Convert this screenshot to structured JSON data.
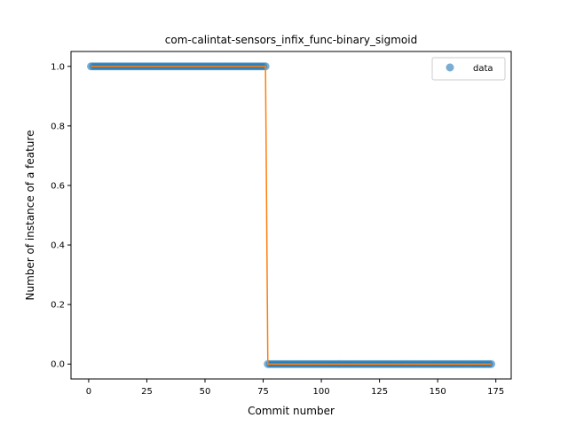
{
  "chart_data": {
    "type": "scatter",
    "title": "com-calintat-sensors_infix_func-binary_sigmoid",
    "xlabel": "Commit number",
    "ylabel": "Number of instance of a feature",
    "xlim": [
      -7.6,
      181.6
    ],
    "ylim": [
      -0.05,
      1.05
    ],
    "xticks": [
      0,
      25,
      50,
      75,
      100,
      125,
      150,
      175
    ],
    "yticks": [
      0.0,
      0.2,
      0.4,
      0.6,
      0.8,
      1.0
    ],
    "xtick_labels": [
      "0",
      "25",
      "50",
      "75",
      "100",
      "125",
      "150",
      "175"
    ],
    "ytick_labels": [
      "0.0",
      "0.2",
      "0.4",
      "0.6",
      "0.8",
      "1.0"
    ],
    "grid": false,
    "legend_position": "top-right",
    "series": [
      {
        "name": "data",
        "kind": "scatter",
        "color": "#1f77b4",
        "segments": [
          {
            "x_start": 1,
            "x_end": 76,
            "y": 1
          },
          {
            "x_start": 77,
            "x_end": 173,
            "y": 0
          }
        ]
      },
      {
        "kind": "line",
        "color": "#ff7f0e",
        "x": [
          1,
          76,
          77,
          173
        ],
        "y": [
          1,
          1,
          0,
          0
        ]
      }
    ]
  }
}
